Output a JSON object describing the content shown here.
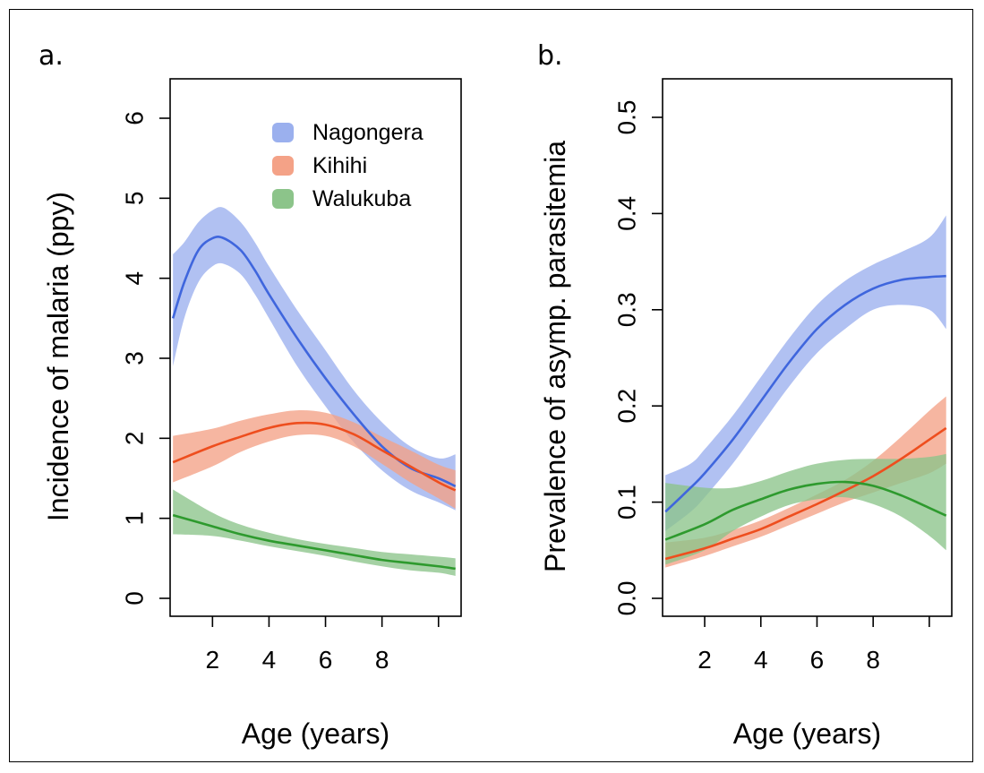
{
  "colors": {
    "Nagongera": {
      "line": "#3f66dd",
      "band": "#9bb0ee"
    },
    "Kihihi": {
      "line": "#ee4e1e",
      "band": "#f4a287"
    },
    "Walukuba": {
      "line": "#2e9a2e",
      "band": "#8cc48a"
    }
  },
  "chart_data": [
    {
      "type": "line",
      "panel_label": "a.",
      "title": "",
      "xlabel": "Age (years)",
      "ylabel": "Incidence of malaria (ppy)",
      "xlim": [
        0.5,
        10.8
      ],
      "ylim": [
        0,
        6
      ],
      "xticks": [
        2,
        4,
        6,
        8,
        10
      ],
      "xtick_labels": [
        "2",
        "4",
        "6",
        "8",
        ""
      ],
      "yticks": [
        0,
        1,
        2,
        3,
        4,
        5,
        6
      ],
      "ytick_labels": [
        "0",
        "1",
        "2",
        "3",
        "4",
        "5",
        "6"
      ],
      "legend": [
        "Nagongera",
        "Kihihi",
        "Walukuba"
      ],
      "legend_position": "top-right",
      "series": [
        {
          "name": "Nagongera",
          "x": [
            0.6,
            1.0,
            1.5,
            2.0,
            2.4,
            3.0,
            3.5,
            4.0,
            5.0,
            6.0,
            7.0,
            8.0,
            9.0,
            10.0,
            10.6
          ],
          "y": [
            3.5,
            3.95,
            4.35,
            4.5,
            4.5,
            4.35,
            4.1,
            3.8,
            3.25,
            2.75,
            2.3,
            1.9,
            1.63,
            1.5,
            1.4
          ],
          "lower": [
            2.9,
            3.5,
            3.95,
            4.15,
            4.18,
            4.05,
            3.8,
            3.5,
            2.9,
            2.4,
            1.95,
            1.6,
            1.35,
            1.2,
            1.1
          ],
          "upper": [
            4.3,
            4.45,
            4.7,
            4.85,
            4.88,
            4.7,
            4.45,
            4.15,
            3.6,
            3.1,
            2.6,
            2.2,
            1.9,
            1.75,
            1.8
          ]
        },
        {
          "name": "Kihihi",
          "x": [
            0.6,
            2.0,
            3.0,
            4.0,
            5.0,
            6.0,
            7.0,
            8.0,
            9.0,
            10.0,
            10.6
          ],
          "y": [
            1.7,
            1.9,
            2.02,
            2.13,
            2.19,
            2.17,
            2.05,
            1.85,
            1.65,
            1.45,
            1.35
          ],
          "lower": [
            1.45,
            1.65,
            1.83,
            1.96,
            2.04,
            2.03,
            1.9,
            1.68,
            1.45,
            1.25,
            1.12
          ],
          "upper": [
            2.03,
            2.12,
            2.22,
            2.3,
            2.35,
            2.32,
            2.2,
            2.02,
            1.85,
            1.67,
            1.6
          ]
        },
        {
          "name": "Walukuba",
          "x": [
            0.6,
            2.0,
            3.0,
            4.0,
            5.0,
            6.0,
            7.0,
            8.0,
            9.0,
            10.0,
            10.6
          ],
          "y": [
            1.04,
            0.9,
            0.8,
            0.72,
            0.66,
            0.6,
            0.54,
            0.48,
            0.44,
            0.4,
            0.37
          ],
          "lower": [
            0.8,
            0.78,
            0.72,
            0.65,
            0.59,
            0.53,
            0.46,
            0.4,
            0.35,
            0.32,
            0.28
          ],
          "upper": [
            1.36,
            1.07,
            0.92,
            0.82,
            0.74,
            0.68,
            0.63,
            0.58,
            0.55,
            0.52,
            0.5
          ]
        }
      ]
    },
    {
      "type": "line",
      "panel_label": "b.",
      "title": "",
      "xlabel": "Age (years)",
      "ylabel": "Prevalence of asymp. parasitemia",
      "xlim": [
        0.5,
        10.8
      ],
      "ylim": [
        0,
        0.5
      ],
      "xticks": [
        2,
        4,
        6,
        8,
        10
      ],
      "xtick_labels": [
        "2",
        "4",
        "6",
        "8",
        ""
      ],
      "yticks": [
        0,
        0.1,
        0.2,
        0.3,
        0.4,
        0.5
      ],
      "ytick_labels": [
        "0.0",
        "0.1",
        "0.2",
        "0.3",
        "0.4",
        "0.5"
      ],
      "series": [
        {
          "name": "Nagongera",
          "x": [
            0.6,
            1.5,
            2.0,
            3.0,
            4.0,
            5.0,
            6.0,
            7.0,
            8.0,
            9.0,
            10.0,
            10.6
          ],
          "y": [
            0.09,
            0.115,
            0.13,
            0.165,
            0.205,
            0.245,
            0.28,
            0.305,
            0.322,
            0.331,
            0.334,
            0.335
          ],
          "lower": [
            0.07,
            0.09,
            0.105,
            0.14,
            0.18,
            0.22,
            0.255,
            0.28,
            0.3,
            0.305,
            0.3,
            0.28
          ],
          "upper": [
            0.128,
            0.14,
            0.155,
            0.19,
            0.23,
            0.27,
            0.305,
            0.33,
            0.347,
            0.36,
            0.375,
            0.398
          ]
        },
        {
          "name": "Kihihi",
          "x": [
            0.6,
            2.0,
            3.0,
            4.0,
            5.0,
            6.0,
            7.0,
            8.0,
            9.0,
            10.0,
            10.6
          ],
          "y": [
            0.041,
            0.052,
            0.062,
            0.072,
            0.085,
            0.098,
            0.112,
            0.127,
            0.145,
            0.165,
            0.177
          ],
          "lower": [
            0.032,
            0.044,
            0.054,
            0.064,
            0.076,
            0.088,
            0.1,
            0.11,
            0.12,
            0.13,
            0.14
          ],
          "upper": [
            0.058,
            0.063,
            0.071,
            0.081,
            0.094,
            0.108,
            0.123,
            0.143,
            0.168,
            0.195,
            0.21
          ]
        },
        {
          "name": "Walukuba",
          "x": [
            0.6,
            2.0,
            3.0,
            4.0,
            5.0,
            6.0,
            7.0,
            8.0,
            9.0,
            10.0,
            10.6
          ],
          "y": [
            0.061,
            0.077,
            0.092,
            0.103,
            0.113,
            0.119,
            0.121,
            0.117,
            0.107,
            0.094,
            0.086
          ],
          "lower": [
            0.035,
            0.05,
            0.07,
            0.085,
            0.097,
            0.103,
            0.105,
            0.098,
            0.085,
            0.065,
            0.05
          ],
          "upper": [
            0.12,
            0.115,
            0.115,
            0.122,
            0.132,
            0.14,
            0.144,
            0.145,
            0.145,
            0.147,
            0.15
          ]
        }
      ]
    }
  ]
}
